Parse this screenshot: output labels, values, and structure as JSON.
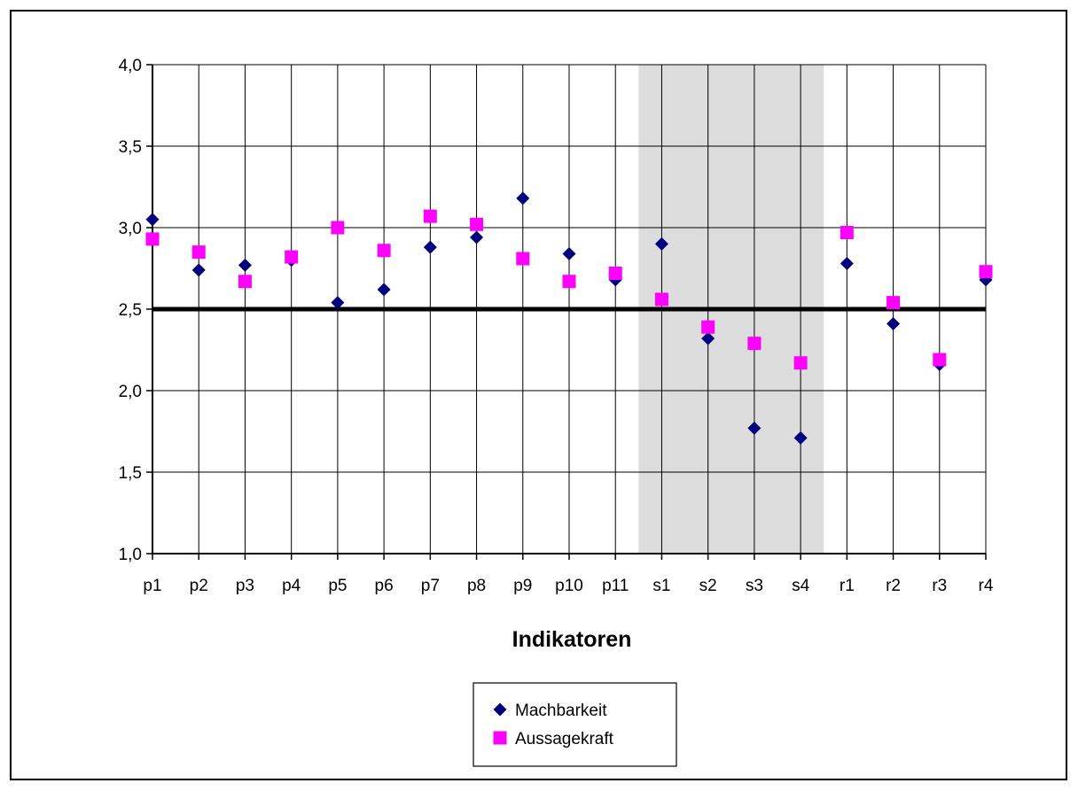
{
  "chart_data": {
    "type": "scatter",
    "title": "",
    "xlabel": "Indikatoren",
    "ylabel": "",
    "categories": [
      "p1",
      "p2",
      "p3",
      "p4",
      "p5",
      "p6",
      "p7",
      "p8",
      "p9",
      "p10",
      "p11",
      "s1",
      "s2",
      "s3",
      "s4",
      "r1",
      "r2",
      "r3",
      "r4"
    ],
    "ylim": [
      1.0,
      4.0
    ],
    "yticks": [
      1.0,
      1.5,
      2.0,
      2.5,
      3.0,
      3.5,
      4.0
    ],
    "ytick_labels": [
      "1,0",
      "1,5",
      "2,0",
      "2,5",
      "3,0",
      "3,5",
      "4,0"
    ],
    "grid": true,
    "reference_line": 2.5,
    "shaded_categories": [
      "s1",
      "s2",
      "s3",
      "s4"
    ],
    "series": [
      {
        "name": "Machbarkeit",
        "marker": "diamond",
        "color": "#00007F",
        "values": [
          3.05,
          2.74,
          2.77,
          2.8,
          2.54,
          2.62,
          2.88,
          2.94,
          3.18,
          2.84,
          2.68,
          2.9,
          2.32,
          1.77,
          1.71,
          2.78,
          2.41,
          2.16,
          2.68
        ]
      },
      {
        "name": "Aussagekraft",
        "marker": "square",
        "color": "#FF00FF",
        "values": [
          2.93,
          2.85,
          2.67,
          2.82,
          3.0,
          2.86,
          3.07,
          3.02,
          2.81,
          2.67,
          2.72,
          2.56,
          2.39,
          2.29,
          2.17,
          2.97,
          2.54,
          2.19,
          2.73
        ]
      }
    ],
    "legend_position": "bottom-center",
    "colors": {
      "grid": "#000000",
      "shade": "#DDDDDD",
      "reference": "#000000"
    }
  }
}
